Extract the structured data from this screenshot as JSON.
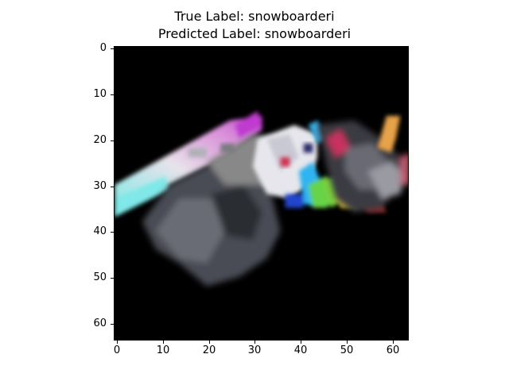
{
  "figure": {
    "title_line1": "True Label: snowboarderi",
    "title_line2": "Predicted Label: snowboarderi"
  },
  "image": {
    "description_icon": "snowboarder-image-icon",
    "background_color": "#000000",
    "resolution": [
      64,
      64
    ]
  },
  "axes": {
    "y_ticks": [
      "0",
      "10",
      "20",
      "30",
      "40",
      "50",
      "60"
    ],
    "x_ticks": [
      "0",
      "10",
      "20",
      "30",
      "40",
      "50",
      "60"
    ],
    "y_range": [
      0,
      63
    ],
    "x_range": [
      0,
      63
    ]
  }
}
